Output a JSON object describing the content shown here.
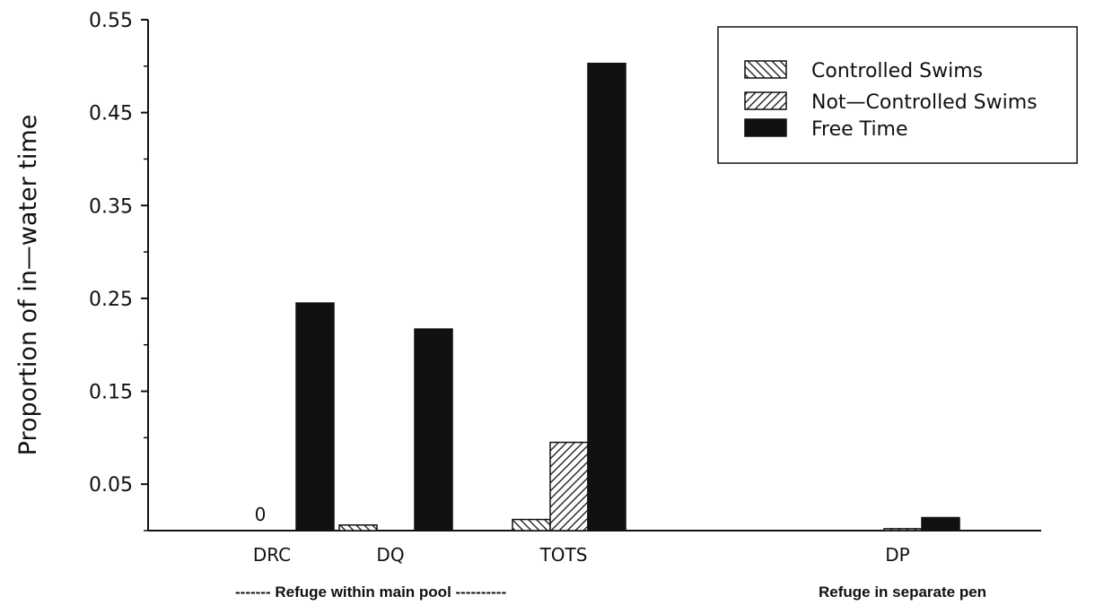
{
  "chart_data": {
    "type": "bar",
    "ylabel": "Proportion of in—water time",
    "xlabel": "",
    "ylim": [
      0.0,
      0.55
    ],
    "yticks": [
      "0.55",
      "0.45",
      "0.35",
      "0.25",
      "0.15",
      "0.05"
    ],
    "categories": [
      "DRC",
      "DQ",
      "TOTS",
      "DP"
    ],
    "series": [
      {
        "name": "Controlled Swims",
        "values": [
          0,
          0.006,
          0.012,
          0
        ],
        "pattern": "back-hatch"
      },
      {
        "name": "Not—Controlled Swims",
        "values": [
          0,
          0,
          0.095,
          0.002
        ],
        "pattern": "forward-hatch"
      },
      {
        "name": "Free Time",
        "values": [
          0.245,
          0.217,
          0.503,
          0.014
        ],
        "pattern": "solid",
        "color": "#111111"
      }
    ],
    "annotations": [
      {
        "text": "0",
        "category": "DRC"
      }
    ],
    "group_labels": [
      "------- Refuge within main pool ----------",
      "Refuge in separate pen"
    ],
    "legend": {
      "position": "top-right"
    },
    "grid": false
  }
}
